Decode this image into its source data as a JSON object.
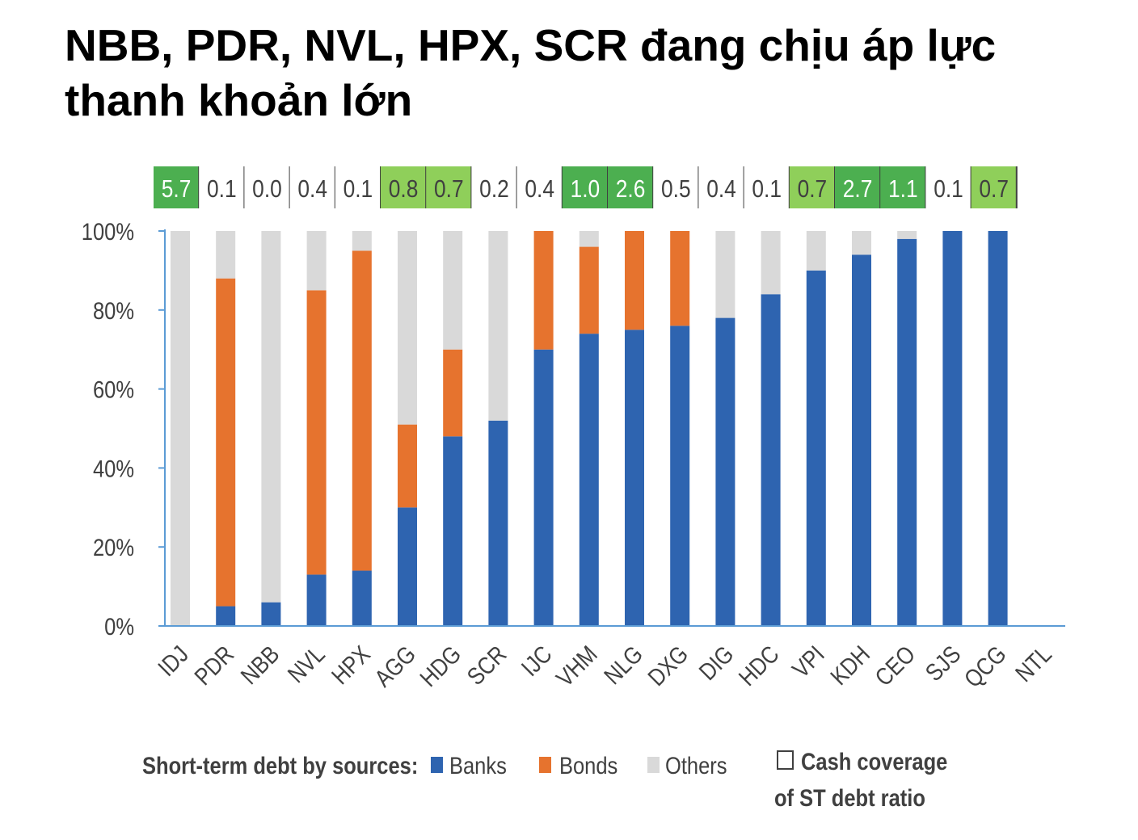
{
  "slide": {
    "title": "NBB, PDR, NVL, HPX, SCR đang chịu áp lực thanh khoản lớn"
  },
  "chart_data": {
    "type": "bar",
    "stacked": true,
    "categories": [
      "IDJ",
      "PDR",
      "NBB",
      "NVL",
      "HPX",
      "AGG",
      "HDG",
      "SCR",
      "IJC",
      "VHM",
      "NLG",
      "DXG",
      "DIG",
      "HDC",
      "VPI",
      "KDH",
      "CEO",
      "SJS",
      "QCG",
      "NTL"
    ],
    "series": [
      {
        "name": "Banks",
        "color": "#2e64b0",
        "values": [
          0,
          5,
          6,
          13,
          14,
          30,
          48,
          52,
          70,
          74,
          75,
          76,
          78,
          84,
          90,
          94,
          98,
          100,
          100,
          0
        ]
      },
      {
        "name": "Bonds",
        "color": "#e6732e",
        "values": [
          0,
          83,
          0,
          72,
          81,
          21,
          22,
          0,
          30,
          22,
          25,
          24,
          0,
          0,
          0,
          0,
          0,
          0,
          0,
          0
        ]
      },
      {
        "name": "Others",
        "color": "#d9d9d9",
        "values": [
          100,
          12,
          94,
          15,
          5,
          49,
          30,
          48,
          0,
          4,
          0,
          0,
          22,
          16,
          10,
          6,
          2,
          0,
          0,
          0
        ]
      }
    ],
    "cash_coverage": {
      "values": [
        "5.7",
        "0.1",
        "0.0",
        "0.4",
        "0.1",
        "0.8",
        "0.7",
        "0.2",
        "0.4",
        "1.0",
        "2.6",
        "0.5",
        "0.4",
        "0.1",
        "0.7",
        "2.7",
        "1.1",
        "0.1",
        "0.7"
      ],
      "levels": [
        "high",
        "none",
        "none",
        "none",
        "none",
        "mid",
        "mid",
        "none",
        "none",
        "high",
        "high",
        "none",
        "none",
        "none",
        "mid",
        "high",
        "high",
        "none",
        "mid"
      ],
      "colors": {
        "high": "#4caf50",
        "mid": "#8fcf5a",
        "none": "#ffffff"
      }
    },
    "ylim": [
      0,
      100
    ],
    "yticks": [
      "0%",
      "20%",
      "40%",
      "60%",
      "80%",
      "100%"
    ],
    "legend": {
      "prefix": "Short-term debt by sources:",
      "banks": "Banks",
      "bonds": "Bonds",
      "others": "Others",
      "coverage_line1": "Cash coverage",
      "coverage_line2": "of ST debt ratio"
    },
    "axis_color": "#5b9bd5"
  }
}
